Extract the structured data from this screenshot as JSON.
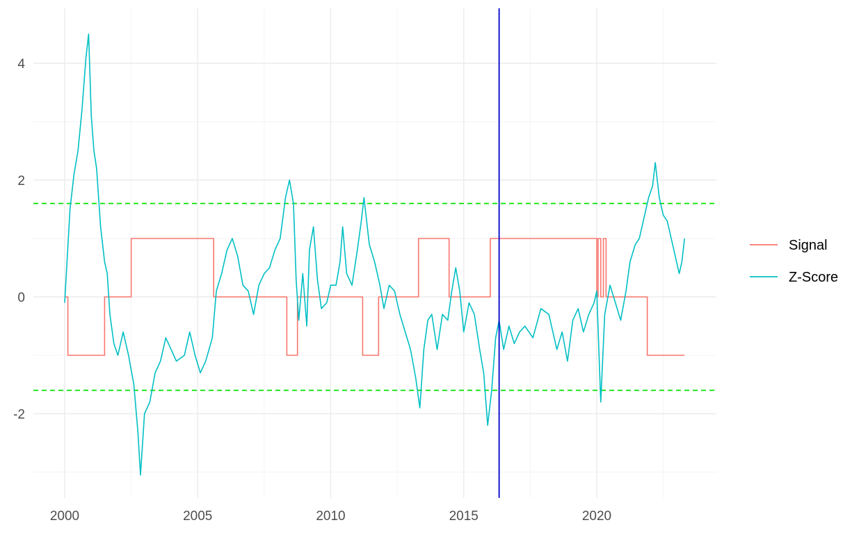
{
  "chart_data": {
    "type": "line",
    "title": "",
    "xlabel": "",
    "ylabel": "",
    "xlim": [
      1999.5,
      2024.3
    ],
    "ylim": [
      -3.05,
      4.5
    ],
    "x_ticks": [
      2000,
      2005,
      2010,
      2015,
      2020
    ],
    "x_tick_labels": [
      "2000",
      "2005",
      "2010",
      "2015",
      "2020"
    ],
    "y_ticks": [
      -2,
      0,
      2,
      4
    ],
    "y_tick_labels": [
      "-2",
      "0",
      "2",
      "4"
    ],
    "grid": true,
    "legend_position": "right",
    "thresholds": [
      {
        "value": 1.6,
        "style": "dashed",
        "color": "#00e000"
      },
      {
        "value": -1.6,
        "style": "dashed",
        "color": "#00e000"
      }
    ],
    "vertical_marker": {
      "x": 2016.33,
      "color": "#0000cc"
    },
    "series": [
      {
        "name": "Signal",
        "color": "#f8766d",
        "step": true,
        "points": [
          [
            2000.0,
            0
          ],
          [
            2000.12,
            -1
          ],
          [
            2001.5,
            0
          ],
          [
            2002.5,
            1
          ],
          [
            2005.6,
            0
          ],
          [
            2008.35,
            -1
          ],
          [
            2008.75,
            0
          ],
          [
            2011.2,
            -1
          ],
          [
            2011.8,
            0
          ],
          [
            2013.3,
            1
          ],
          [
            2014.45,
            0
          ],
          [
            2016.0,
            1
          ],
          [
            2020.0,
            0
          ],
          [
            2020.05,
            1
          ],
          [
            2020.15,
            0
          ],
          [
            2020.25,
            1
          ],
          [
            2020.35,
            0
          ],
          [
            2021.9,
            -1
          ],
          [
            2023.3,
            -1
          ]
        ]
      },
      {
        "name": "Z-Score",
        "color": "#00bfc4",
        "points": [
          [
            2000.0,
            -0.1
          ],
          [
            2000.2,
            1.5
          ],
          [
            2000.35,
            2.1
          ],
          [
            2000.5,
            2.5
          ],
          [
            2000.65,
            3.2
          ],
          [
            2000.8,
            4.1
          ],
          [
            2000.9,
            4.5
          ],
          [
            2001.0,
            3.1
          ],
          [
            2001.1,
            2.5
          ],
          [
            2001.2,
            2.2
          ],
          [
            2001.35,
            1.2
          ],
          [
            2001.5,
            0.6
          ],
          [
            2001.6,
            0.4
          ],
          [
            2001.7,
            -0.3
          ],
          [
            2001.85,
            -0.8
          ],
          [
            2002.0,
            -1.0
          ],
          [
            2002.2,
            -0.6
          ],
          [
            2002.4,
            -1.0
          ],
          [
            2002.6,
            -1.5
          ],
          [
            2002.75,
            -2.3
          ],
          [
            2002.85,
            -3.05
          ],
          [
            2003.0,
            -2.0
          ],
          [
            2003.2,
            -1.8
          ],
          [
            2003.4,
            -1.3
          ],
          [
            2003.6,
            -1.1
          ],
          [
            2003.8,
            -0.7
          ],
          [
            2004.0,
            -0.9
          ],
          [
            2004.2,
            -1.1
          ],
          [
            2004.5,
            -1.0
          ],
          [
            2004.7,
            -0.6
          ],
          [
            2004.9,
            -1.0
          ],
          [
            2005.1,
            -1.3
          ],
          [
            2005.3,
            -1.1
          ],
          [
            2005.55,
            -0.7
          ],
          [
            2005.7,
            0.1
          ],
          [
            2005.9,
            0.4
          ],
          [
            2006.1,
            0.8
          ],
          [
            2006.3,
            1.0
          ],
          [
            2006.5,
            0.7
          ],
          [
            2006.7,
            0.2
          ],
          [
            2006.9,
            0.1
          ],
          [
            2007.1,
            -0.3
          ],
          [
            2007.3,
            0.2
          ],
          [
            2007.5,
            0.4
          ],
          [
            2007.7,
            0.5
          ],
          [
            2007.9,
            0.8
          ],
          [
            2008.1,
            1.0
          ],
          [
            2008.3,
            1.7
          ],
          [
            2008.45,
            2.0
          ],
          [
            2008.6,
            1.6
          ],
          [
            2008.7,
            0.3
          ],
          [
            2008.8,
            -0.4
          ],
          [
            2008.95,
            0.4
          ],
          [
            2009.1,
            -0.5
          ],
          [
            2009.2,
            0.8
          ],
          [
            2009.35,
            1.2
          ],
          [
            2009.5,
            0.3
          ],
          [
            2009.65,
            -0.2
          ],
          [
            2009.85,
            -0.1
          ],
          [
            2010.0,
            0.2
          ],
          [
            2010.2,
            0.2
          ],
          [
            2010.35,
            0.6
          ],
          [
            2010.45,
            1.2
          ],
          [
            2010.6,
            0.4
          ],
          [
            2010.8,
            0.2
          ],
          [
            2011.0,
            0.8
          ],
          [
            2011.15,
            1.3
          ],
          [
            2011.25,
            1.7
          ],
          [
            2011.45,
            0.9
          ],
          [
            2011.65,
            0.6
          ],
          [
            2011.85,
            0.2
          ],
          [
            2012.0,
            -0.2
          ],
          [
            2012.2,
            0.2
          ],
          [
            2012.4,
            0.1
          ],
          [
            2012.6,
            -0.3
          ],
          [
            2012.8,
            -0.6
          ],
          [
            2013.0,
            -0.9
          ],
          [
            2013.2,
            -1.4
          ],
          [
            2013.35,
            -1.9
          ],
          [
            2013.5,
            -0.9
          ],
          [
            2013.65,
            -0.4
          ],
          [
            2013.8,
            -0.3
          ],
          [
            2014.0,
            -0.9
          ],
          [
            2014.2,
            -0.3
          ],
          [
            2014.4,
            -0.4
          ],
          [
            2014.55,
            0.1
          ],
          [
            2014.7,
            0.5
          ],
          [
            2014.85,
            0.1
          ],
          [
            2015.0,
            -0.6
          ],
          [
            2015.2,
            -0.1
          ],
          [
            2015.4,
            -0.3
          ],
          [
            2015.6,
            -0.9
          ],
          [
            2015.75,
            -1.3
          ],
          [
            2015.9,
            -2.2
          ],
          [
            2016.05,
            -1.6
          ],
          [
            2016.2,
            -0.7
          ],
          [
            2016.33,
            -0.4
          ],
          [
            2016.5,
            -0.9
          ],
          [
            2016.7,
            -0.5
          ],
          [
            2016.9,
            -0.8
          ],
          [
            2017.1,
            -0.6
          ],
          [
            2017.3,
            -0.5
          ],
          [
            2017.6,
            -0.7
          ],
          [
            2017.9,
            -0.2
          ],
          [
            2018.2,
            -0.3
          ],
          [
            2018.5,
            -0.9
          ],
          [
            2018.7,
            -0.6
          ],
          [
            2018.9,
            -1.1
          ],
          [
            2019.1,
            -0.4
          ],
          [
            2019.3,
            -0.2
          ],
          [
            2019.5,
            -0.6
          ],
          [
            2019.7,
            -0.3
          ],
          [
            2019.9,
            -0.1
          ],
          [
            2020.0,
            0.1
          ],
          [
            2020.15,
            -1.8
          ],
          [
            2020.3,
            -0.3
          ],
          [
            2020.5,
            0.2
          ],
          [
            2020.7,
            -0.1
          ],
          [
            2020.9,
            -0.4
          ],
          [
            2021.1,
            0.1
          ],
          [
            2021.25,
            0.6
          ],
          [
            2021.45,
            0.9
          ],
          [
            2021.6,
            1.0
          ],
          [
            2021.75,
            1.3
          ],
          [
            2021.95,
            1.7
          ],
          [
            2022.1,
            1.9
          ],
          [
            2022.2,
            2.3
          ],
          [
            2022.35,
            1.7
          ],
          [
            2022.5,
            1.4
          ],
          [
            2022.65,
            1.3
          ],
          [
            2022.8,
            1.0
          ],
          [
            2023.0,
            0.6
          ],
          [
            2023.1,
            0.4
          ],
          [
            2023.2,
            0.6
          ],
          [
            2023.3,
            1.0
          ]
        ]
      }
    ]
  }
}
